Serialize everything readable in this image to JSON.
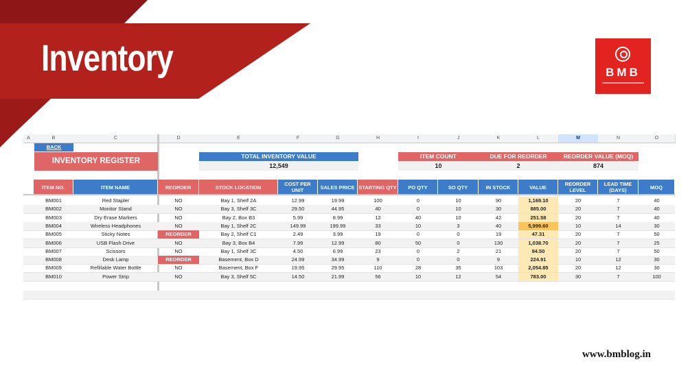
{
  "header": {
    "title": "Inventory"
  },
  "logo": {
    "text": "BMB",
    "icon": "magnifier-chart-icon"
  },
  "website": "www.bmblog.in",
  "sheet": {
    "column_letters": [
      "A",
      "B",
      "C",
      "D",
      "E",
      "F",
      "G",
      "H",
      "I",
      "J",
      "K",
      "L",
      "M",
      "N",
      "O"
    ],
    "selected_column": "M",
    "back_link": "BACK",
    "register_title": "INVENTORY REGISTER",
    "kpis": {
      "total_inventory_value": {
        "label": "TOTAL INVENTORY VALUE",
        "value": "12,549"
      },
      "item_count": {
        "label": "ITEM COUNT",
        "value": "10"
      },
      "due_for_reorder": {
        "label": "DUE FOR REORDER",
        "value": "2"
      },
      "reorder_value": {
        "label": "REORDER VALUE (MOQ)",
        "value": "874"
      }
    },
    "columns": [
      "ITEM NO.",
      "ITEM NAME",
      "REORDER",
      "STOCK LOCATION",
      "COST PER UNIT",
      "SALES PRICE",
      "STARTING QTY",
      "PO QTY",
      "SO QTY",
      "IN STOCK",
      "VALUE",
      "REORDER LEVEL",
      "LEAD TIME (DAYS)",
      "MOQ"
    ],
    "rows": [
      [
        "BM001",
        "Red Stapler",
        "NO",
        "Bay 1, Shelf 2A",
        "12.99",
        "19.99",
        "100",
        "0",
        "10",
        "90",
        "1,169.10",
        "20",
        "7",
        "40"
      ],
      [
        "BM002",
        "Monitor Stand",
        "NO",
        "Bay 3, Shelf 3C",
        "29.50",
        "44.95",
        "40",
        "0",
        "10",
        "30",
        "885.00",
        "20",
        "7",
        "40"
      ],
      [
        "BM003",
        "Dry Erase Markers",
        "NO",
        "Bay 2, Box B3",
        "5.99",
        "8.99",
        "12",
        "40",
        "10",
        "42",
        "251.58",
        "20",
        "7",
        "40"
      ],
      [
        "BM004",
        "Wireless Headphones",
        "NO",
        "Bay 1, Shelf 2C",
        "149.99",
        "199.99",
        "33",
        "10",
        "3",
        "40",
        "5,999.60",
        "10",
        "14",
        "30"
      ],
      [
        "BM005",
        "Sticky Notes",
        "REORDER",
        "Bay 2, Shelf C1",
        "2.49",
        "3.99",
        "19",
        "0",
        "0",
        "19",
        "47.31",
        "20",
        "7",
        "50"
      ],
      [
        "BM006",
        "USB Flash Drive",
        "NO",
        "Bay 3, Box B4",
        "7.99",
        "12.99",
        "80",
        "50",
        "0",
        "130",
        "1,038.70",
        "20",
        "7",
        "25"
      ],
      [
        "BM007",
        "Scissors",
        "NO",
        "Bay 1, Shelf 3C",
        "4.50",
        "6.99",
        "23",
        "0",
        "2",
        "21",
        "94.50",
        "20",
        "7",
        "50"
      ],
      [
        "BM008",
        "Desk Lamp",
        "REORDER",
        "Basement, Box D",
        "24.99",
        "34.99",
        "9",
        "0",
        "0",
        "9",
        "224.91",
        "10",
        "12",
        "30"
      ],
      [
        "BM009",
        "Refillable Water Bottle",
        "NO",
        "Basement, Box F",
        "19.95",
        "29.95",
        "110",
        "28",
        "35",
        "103",
        "2,054.85",
        "20",
        "12",
        "30"
      ],
      [
        "BM010",
        "Power Strip",
        "NO",
        "Bay 3, Shelf 5C",
        "14.50",
        "21.99",
        "56",
        "10",
        "12",
        "54",
        "783.00",
        "30",
        "7",
        "100"
      ]
    ]
  }
}
